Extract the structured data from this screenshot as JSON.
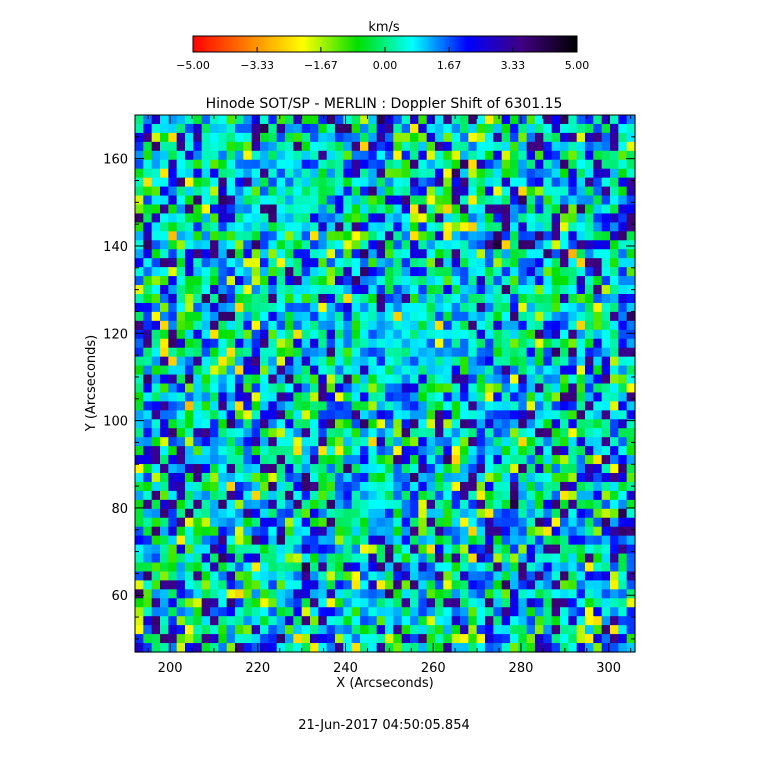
{
  "chart_data": {
    "type": "heatmap",
    "title": "Hinode SOT/SP - MERLIN : Doppler Shift of 6301.15",
    "xlabel": "X (Arcseconds)",
    "ylabel": "Y (Arcseconds)",
    "xlim": [
      192,
      306
    ],
    "ylim": [
      47,
      170
    ],
    "xticks": [
      200,
      220,
      240,
      260,
      280,
      300
    ],
    "yticks": [
      60,
      80,
      100,
      120,
      140,
      160
    ],
    "colorbar": {
      "label": "km/s",
      "range": [
        -5.0,
        5.0
      ],
      "ticks": [
        "-5.00",
        "-3.33",
        "-1.67",
        "0.00",
        "1.67",
        "3.33",
        "5.00"
      ],
      "colors": [
        "#ff0000",
        "#ff8000",
        "#ffff00",
        "#00e000",
        "#00ffff",
        "#0000ff",
        "#400080",
        "#000000"
      ]
    },
    "timestamp": "21-Jun-2017 04:50:05.854",
    "grid": false
  }
}
